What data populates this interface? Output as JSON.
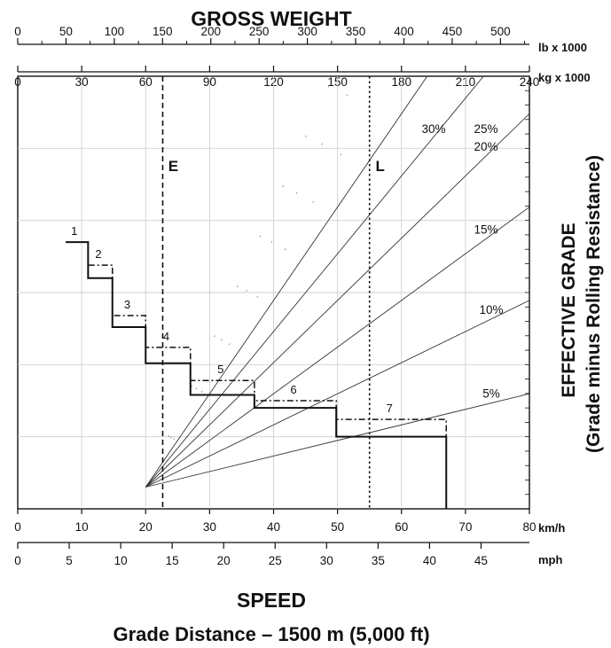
{
  "chart_data": {
    "type": "line",
    "title": "GROSS WEIGHT",
    "xlabel": "SPEED",
    "ylabel": "EFFECTIVE GRADE",
    "ylabel_sub": "(Grade minus Rolling Resistance)",
    "footer": "Grade Distance – 1500 m (5,000 ft)",
    "x_axis": {
      "unit": "km/h",
      "min": 0,
      "max": 80,
      "ticks": [
        "0",
        "10",
        "20",
        "30",
        "40",
        "50",
        "60",
        "70",
        "80"
      ],
      "tick_values": [
        0,
        10,
        20,
        30,
        40,
        50,
        60,
        70,
        80
      ]
    },
    "x_axis_mph": {
      "unit": "mph",
      "ticks": [
        "0",
        "5",
        "10",
        "15",
        "20",
        "25",
        "30",
        "35",
        "40",
        "45"
      ],
      "tick_values": [
        0,
        5,
        10,
        15,
        20,
        25,
        30,
        35,
        40,
        45
      ]
    },
    "weight_axis_lb": {
      "unit": "lb x 1000",
      "ticks": [
        "0",
        "50",
        "100",
        "150",
        "200",
        "250",
        "300",
        "350",
        "400",
        "450",
        "500"
      ],
      "tick_values": [
        0,
        50,
        100,
        150,
        200,
        250,
        300,
        350,
        400,
        450,
        500
      ]
    },
    "weight_axis_kg": {
      "unit": "kg x 1000",
      "ticks": [
        "0",
        "30",
        "60",
        "90",
        "120",
        "150",
        "180",
        "210",
        "240"
      ],
      "tick_values": [
        0,
        30,
        60,
        90,
        120,
        150,
        180,
        210,
        240
      ]
    },
    "grade_lines": [
      {
        "label": "30%",
        "slope": 0.3
      },
      {
        "label": "25%",
        "slope": 0.25
      },
      {
        "label": "20%",
        "slope": 0.2
      },
      {
        "label": "15%",
        "slope": 0.15
      },
      {
        "label": "10%",
        "slope": 0.1
      },
      {
        "label": "5%",
        "slope": 0.05
      }
    ],
    "markers": [
      {
        "label": "E",
        "kg": 68
      },
      {
        "label": "L",
        "kg": 165
      }
    ],
    "effective_grade_range": [
      0,
      0.3
    ],
    "gears_solid": [
      {
        "gear": "1",
        "x": [
          7.5,
          11
        ],
        "y": 0.185
      },
      {
        "gear": "2",
        "x": [
          11,
          14.8
        ],
        "y": 0.16
      },
      {
        "gear": "3",
        "x": [
          14.8,
          20
        ],
        "y": 0.126
      },
      {
        "gear": "4",
        "x": [
          20,
          27
        ],
        "y": 0.101
      },
      {
        "gear": "5",
        "x": [
          27,
          37
        ],
        "y": 0.079
      },
      {
        "gear": "6",
        "x": [
          37,
          49.8
        ],
        "y": 0.07
      },
      {
        "gear": "7",
        "x": [
          49.8,
          67
        ],
        "y": 0.05
      }
    ],
    "gears_dashdot": [
      {
        "gear": "2",
        "x": [
          11,
          14.8
        ],
        "y": 0.169
      },
      {
        "gear": "3",
        "x": [
          14.8,
          20
        ],
        "y": 0.134
      },
      {
        "gear": "4",
        "x": [
          20,
          27
        ],
        "y": 0.112
      },
      {
        "gear": "5",
        "x": [
          27,
          37
        ],
        "y": 0.089
      },
      {
        "gear": "6",
        "x": [
          37,
          49.8
        ],
        "y": 0.075
      },
      {
        "gear": "7",
        "x": [
          49.8,
          67
        ],
        "y": 0.062
      }
    ]
  }
}
